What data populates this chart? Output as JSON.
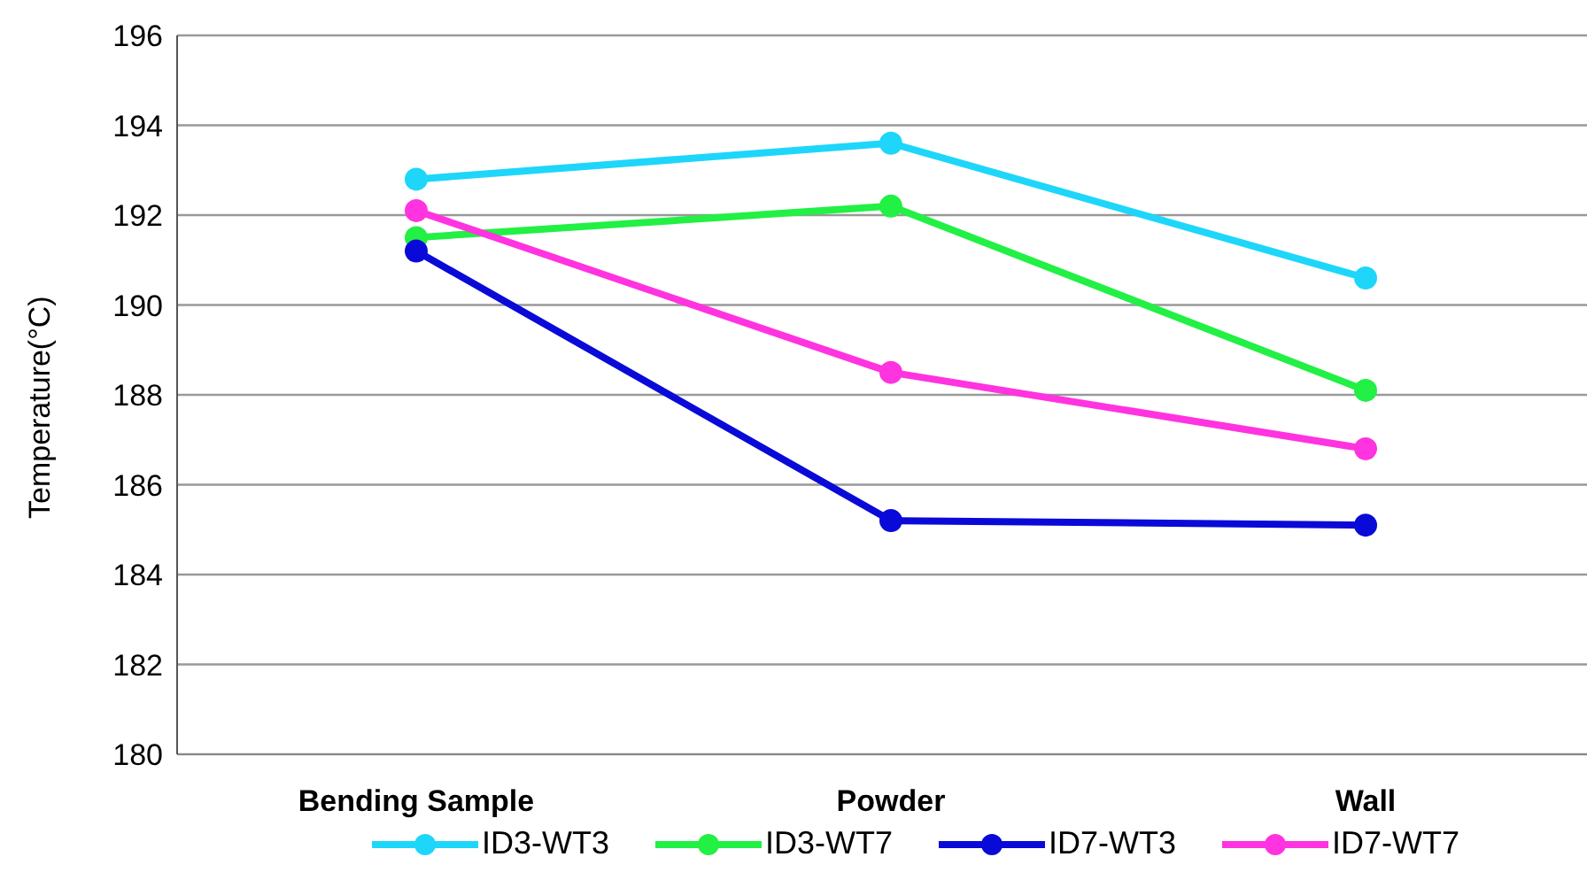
{
  "chart_data": {
    "type": "line",
    "ylabel": "Temperature(°C)",
    "categories": [
      "Bending Sample",
      "Powder",
      "Wall"
    ],
    "series": [
      {
        "name": "ID3-WT3",
        "color": "#1ed6fa",
        "values": [
          192.8,
          193.6,
          190.6
        ]
      },
      {
        "name": "ID3-WT7",
        "color": "#22f044",
        "values": [
          191.5,
          192.2,
          188.1
        ]
      },
      {
        "name": "ID7-WT3",
        "color": "#0a0ad8",
        "values": [
          191.2,
          185.2,
          185.1
        ]
      },
      {
        "name": "ID7-WT7",
        "color": "#ff33e0",
        "values": [
          192.1,
          188.5,
          186.8
        ]
      }
    ],
    "ylim": [
      180,
      196
    ],
    "yticks": [
      180,
      182,
      184,
      186,
      188,
      190,
      192,
      194,
      196
    ],
    "grid": "y",
    "legend": "bottom",
    "marker": "circle",
    "line_style": "solid"
  }
}
